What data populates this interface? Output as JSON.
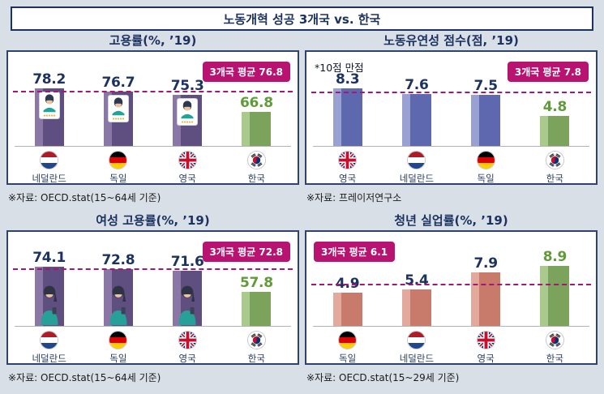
{
  "page": {
    "title": "노동개혁 성공 3개국 vs. 한국",
    "background": "#d9dfe7"
  },
  "colors": {
    "navy": "#1c3260",
    "korea_green": "#609b3a",
    "badge_pink": "#b91371",
    "dashed_magenta": "#a21777",
    "purple_bar": "#5f4e80",
    "blue_bar": "#5d68ae",
    "coral_bar": "#c97b6b",
    "green_bar": "#7ba35c"
  },
  "chart_data": [
    {
      "type": "bar",
      "title": "고용률(%, ’19)",
      "note": "",
      "categories": [
        "네덜란드",
        "독일",
        "영국",
        "한국"
      ],
      "values": [
        78.2,
        76.7,
        75.3,
        66.8
      ],
      "flags": [
        "nl",
        "de",
        "uk",
        "kr"
      ],
      "korea_index": 3,
      "average": 76.8,
      "average_label": "3개국 평균 76.8",
      "badge_position": "right",
      "source": "※자료: OECD.stat(15~64세 기준)",
      "ylim": [
        50,
        82
      ],
      "bar_theme": "purple-card",
      "legend": "none",
      "grid": false
    },
    {
      "type": "bar",
      "title": "노동유연성 점수(점, ’19)",
      "note": "*10점 만점",
      "categories": [
        "영국",
        "네덜란드",
        "독일",
        "한국"
      ],
      "values": [
        8.3,
        7.6,
        7.5,
        4.8
      ],
      "flags": [
        "uk",
        "nl",
        "de",
        "kr"
      ],
      "korea_index": 3,
      "average": 7.8,
      "average_label": "3개국 평균 7.8",
      "badge_position": "right",
      "source": "※자료: 프레이저연구소",
      "ylim": [
        1,
        9.2
      ],
      "bar_theme": "blue",
      "legend": "none",
      "grid": false
    },
    {
      "type": "bar",
      "title": "여성 고용률(%, ’19)",
      "note": "",
      "categories": [
        "네덜란드",
        "독일",
        "영국",
        "한국"
      ],
      "values": [
        74.1,
        72.8,
        71.6,
        57.8
      ],
      "flags": [
        "nl",
        "de",
        "uk",
        "kr"
      ],
      "korea_index": 3,
      "average": 72.8,
      "average_label": "3개국 평균 72.8",
      "badge_position": "right",
      "source": "※자료: OECD.stat(15~64세 기준)",
      "ylim": [
        35,
        78
      ],
      "bar_theme": "purple-person",
      "legend": "none",
      "grid": false
    },
    {
      "type": "bar",
      "title": "청년 실업률(%, ’19)",
      "note": "",
      "categories": [
        "독일",
        "네덜란드",
        "영국",
        "한국"
      ],
      "values": [
        4.9,
        5.4,
        7.9,
        8.9
      ],
      "flags": [
        "de",
        "nl",
        "uk",
        "kr"
      ],
      "korea_index": 3,
      "average": 6.1,
      "average_label": "3개국 평균 6.1",
      "badge_position": "left",
      "source": "※자료: OECD.stat(15~29세 기준)",
      "ylim": [
        0,
        9.6
      ],
      "bar_theme": "coral",
      "legend": "none",
      "grid": false
    }
  ]
}
